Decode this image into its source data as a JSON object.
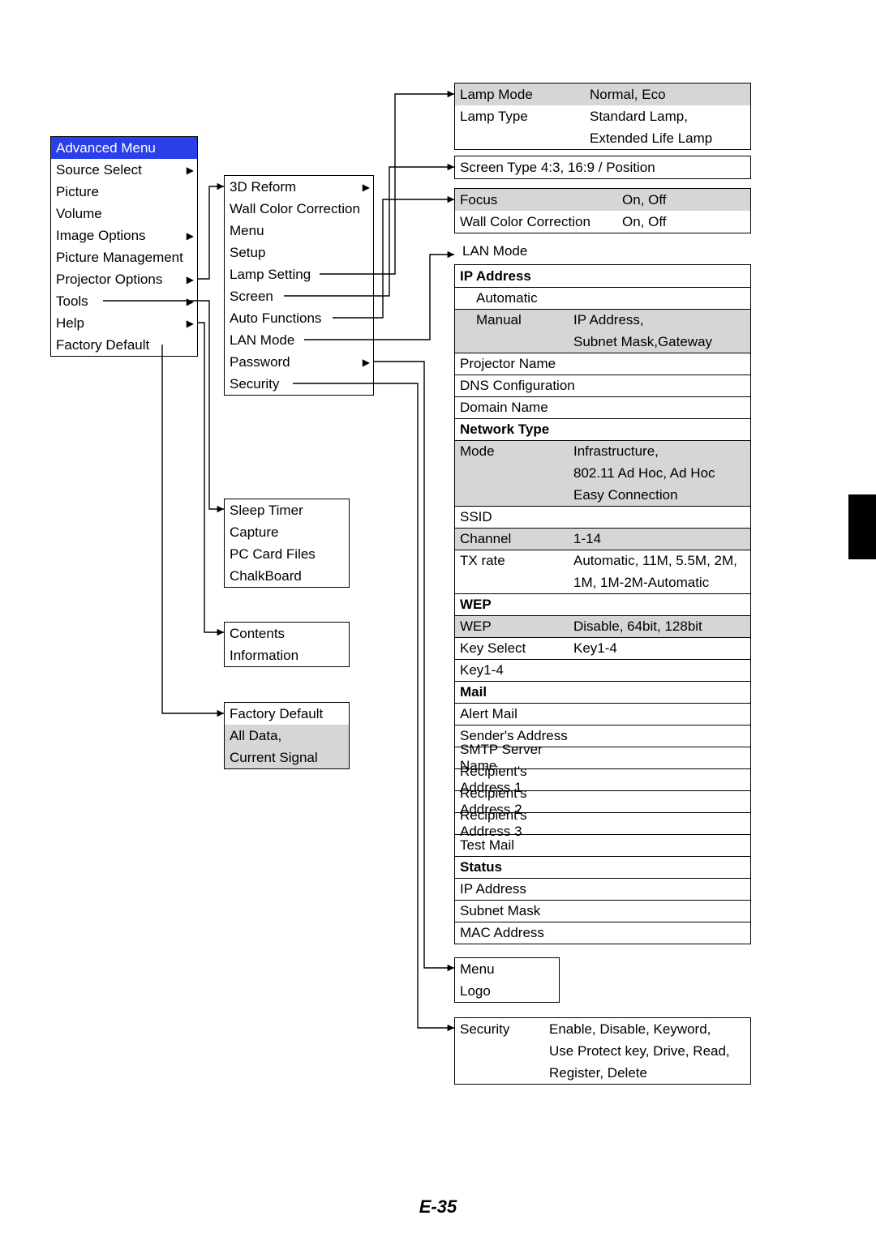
{
  "page_number": "E-35",
  "colors": {
    "header_bg": "#2a3eea",
    "header_text": "#ffffff",
    "shaded_bg": "#d6d6d6",
    "border": "#000000",
    "page_bg": "#ffffff",
    "side_tab": "#000000"
  },
  "main_menu": {
    "title": "Advanced Menu",
    "items": [
      {
        "label": "Source Select",
        "submenu": true
      },
      {
        "label": "Picture"
      },
      {
        "label": "Volume"
      },
      {
        "label": "Image Options",
        "submenu": true
      },
      {
        "label": "Picture Management"
      },
      {
        "label": "Projector Options",
        "submenu": true
      },
      {
        "label": "Tools",
        "submenu": true,
        "link": true
      },
      {
        "label": "Help",
        "submenu": true,
        "link": true
      },
      {
        "label": "Factory Default",
        "link": true
      }
    ]
  },
  "projector_options": {
    "items": [
      {
        "label": "3D Reform",
        "submenu": true
      },
      {
        "label": "Wall Color Correction"
      },
      {
        "label": "Menu"
      },
      {
        "label": "Setup"
      },
      {
        "label": "Lamp Setting",
        "link": true
      },
      {
        "label": "Screen",
        "link": true
      },
      {
        "label": "Auto Functions",
        "link": true
      },
      {
        "label": "LAN Mode",
        "link": true
      },
      {
        "label": "Password",
        "submenu": true,
        "link": true
      },
      {
        "label": "Security",
        "link": true
      }
    ]
  },
  "tools_box": {
    "items": [
      "Sleep Timer",
      "Capture",
      "PC Card Files",
      "ChalkBoard"
    ]
  },
  "help_box": {
    "items": [
      "Contents",
      "Information"
    ]
  },
  "factory_default_box": {
    "items": [
      {
        "label": "Factory Default",
        "shaded": false
      },
      {
        "label": "All Data,",
        "shaded": true
      },
      {
        "label": "Current Signal",
        "shaded": true
      }
    ]
  },
  "lamp_setting": {
    "rows": [
      {
        "c1": "Lamp Mode",
        "c2": "Normal, Eco",
        "shaded": true
      },
      {
        "c1": "Lamp Type",
        "c2": "Standard Lamp,"
      },
      {
        "c1": "",
        "c2": "Extended Life Lamp"
      }
    ]
  },
  "screen_box": {
    "text": "Screen Type 4:3, 16:9 / Position"
  },
  "auto_functions": {
    "rows": [
      {
        "c1": "Focus",
        "c2": "On, Off",
        "shaded": true
      },
      {
        "c1": "Wall Color Correction",
        "c2": "On, Off"
      }
    ]
  },
  "lan_mode": {
    "title": "LAN Mode",
    "sections": [
      {
        "header": "IP Address",
        "rows": [
          {
            "c1": "Automatic",
            "c2": "",
            "indent": true
          },
          {
            "c1": "Manual",
            "c2": "IP Address,",
            "shaded": true,
            "indent": true
          },
          {
            "c1": "",
            "c2": "Subnet Mask,Gateway",
            "shaded": true,
            "indent": true
          }
        ],
        "after": [
          "Projector Name",
          "DNS Configuration",
          "Domain Name"
        ]
      },
      {
        "header": "Network Type",
        "rows": [
          {
            "c1": "Mode",
            "c2": "Infrastructure,",
            "shaded": true
          },
          {
            "c1": "",
            "c2": "802.11 Ad Hoc, Ad Hoc",
            "shaded": true
          },
          {
            "c1": "",
            "c2": "Easy Connection",
            "shaded": true
          },
          {
            "c1": "SSID",
            "c2": ""
          },
          {
            "c1": "Channel",
            "c2": "1-14",
            "shaded": true
          },
          {
            "c1": "TX rate",
            "c2": "Automatic, 11M, 5.5M, 2M,"
          },
          {
            "c1": "",
            "c2": "1M, 1M-2M-Automatic"
          }
        ]
      },
      {
        "header": "WEP",
        "rows": [
          {
            "c1": "WEP",
            "c2": "Disable, 64bit, 128bit",
            "shaded": true
          },
          {
            "c1": "Key Select",
            "c2": "Key1-4"
          },
          {
            "c1": "Key1-4",
            "c2": ""
          }
        ]
      },
      {
        "header": "Mail",
        "rows": [
          {
            "c1": "Alert Mail",
            "c2": ""
          },
          {
            "c1": "Sender's Address",
            "c2": ""
          },
          {
            "c1": "SMTP Server Name",
            "c2": ""
          },
          {
            "c1": "Recipient's Address 1",
            "c2": ""
          },
          {
            "c1": "Recipient's Address 2",
            "c2": ""
          },
          {
            "c1": "Recipient's Address 3",
            "c2": ""
          },
          {
            "c1": "Test Mail",
            "c2": ""
          }
        ]
      },
      {
        "header": "Status",
        "rows": [
          {
            "c1": "IP Address",
            "c2": ""
          },
          {
            "c1": "Subnet Mask",
            "c2": ""
          },
          {
            "c1": "MAC Address",
            "c2": ""
          }
        ]
      }
    ]
  },
  "password_box": {
    "items": [
      "Menu",
      "Logo"
    ]
  },
  "security_box": {
    "rows": [
      {
        "c1": "Security",
        "c2": "Enable, Disable, Keyword,"
      },
      {
        "c1": "",
        "c2": "Use Protect key, Drive, Read,"
      },
      {
        "c1": "",
        "c2": "Register, Delete"
      }
    ]
  }
}
